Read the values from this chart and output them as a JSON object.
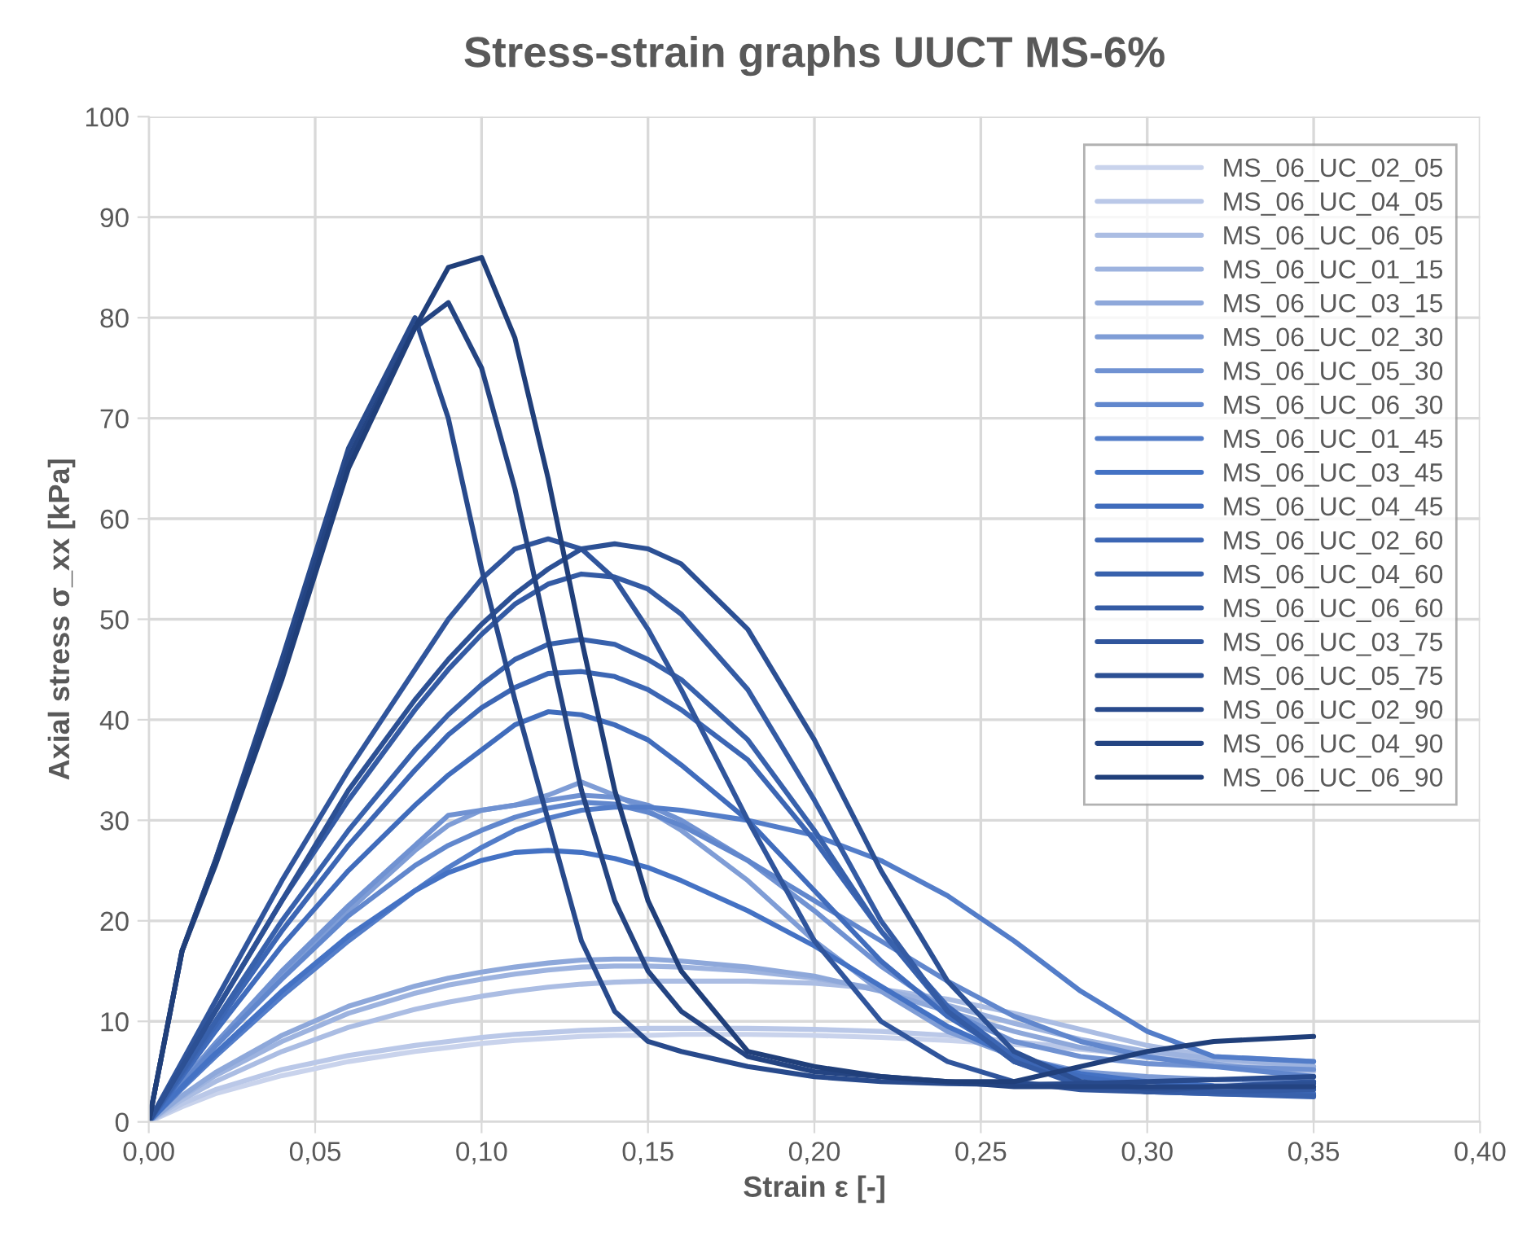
{
  "chart_data": {
    "type": "line",
    "title": "Stress-strain graphs UUCT MS-6%",
    "xlabel": "Strain ε [-]",
    "ylabel": "Axial stress σ_xx [kPa]",
    "x": [
      0,
      0.01,
      0.02,
      0.04,
      0.06,
      0.08,
      0.09,
      0.1,
      0.11,
      0.12,
      0.13,
      0.14,
      0.15,
      0.16,
      0.18,
      0.2,
      0.22,
      0.24,
      0.26,
      0.28,
      0.3,
      0.32,
      0.35
    ],
    "xlim": [
      0,
      0.4
    ],
    "ylim": [
      0,
      100
    ],
    "xticks": [
      {
        "value": 0,
        "label": "0,00"
      },
      {
        "value": 0.05,
        "label": "0,05"
      },
      {
        "value": 0.1,
        "label": "0,10"
      },
      {
        "value": 0.15,
        "label": "0,15"
      },
      {
        "value": 0.2,
        "label": "0,20"
      },
      {
        "value": 0.25,
        "label": "0,25"
      },
      {
        "value": 0.3,
        "label": "0,30"
      },
      {
        "value": 0.35,
        "label": "0,35"
      },
      {
        "value": 0.4,
        "label": "0,40"
      }
    ],
    "yticks": [
      0,
      10,
      20,
      30,
      40,
      50,
      60,
      70,
      80,
      90,
      100
    ],
    "grid": true,
    "legend": "top right",
    "marker": "none",
    "line_style": "solid",
    "series": [
      {
        "name": "MS_06_UC_02_05",
        "color": "#c9d3ec",
        "values": [
          0,
          1.5,
          2.8,
          4.6,
          6.0,
          7.0,
          7.4,
          7.8,
          8.1,
          8.3,
          8.5,
          8.6,
          8.6,
          8.7,
          8.7,
          8.6,
          8.4,
          8.1,
          7.7,
          7.2,
          6.6,
          6.0,
          5.5
        ]
      },
      {
        "name": "MS_06_UC_04_05",
        "color": "#bac8e8",
        "values": [
          0,
          1.8,
          3.2,
          5.2,
          6.6,
          7.6,
          8.0,
          8.4,
          8.7,
          8.9,
          9.1,
          9.2,
          9.3,
          9.3,
          9.3,
          9.2,
          9.0,
          8.6,
          8.0,
          7.3,
          6.6,
          6.0,
          5.0
        ]
      },
      {
        "name": "MS_06_UC_06_05",
        "color": "#abbde3",
        "values": [
          0,
          2.2,
          4,
          7,
          9.4,
          11.2,
          11.9,
          12.5,
          13,
          13.4,
          13.7,
          13.9,
          14,
          14,
          14,
          13.8,
          13.2,
          12.2,
          10.8,
          9.2,
          7.6,
          6.5,
          6.0
        ]
      },
      {
        "name": "MS_06_UC_01_15",
        "color": "#9db3df",
        "values": [
          0,
          2.5,
          4.6,
          8,
          10.8,
          12.8,
          13.6,
          14.2,
          14.7,
          15.1,
          15.4,
          15.5,
          15.5,
          15.4,
          15.0,
          14.3,
          13.2,
          11.6,
          9.8,
          8.2,
          7.0,
          6.3,
          5.5
        ]
      },
      {
        "name": "MS_06_UC_03_15",
        "color": "#8ea8da",
        "values": [
          0,
          2.6,
          4.9,
          8.6,
          11.5,
          13.5,
          14.3,
          14.9,
          15.4,
          15.8,
          16.1,
          16.2,
          16.2,
          16.0,
          15.4,
          14.5,
          13.0,
          11.0,
          9.0,
          7.4,
          6.4,
          5.8,
          4.5
        ]
      },
      {
        "name": "MS_06_UC_02_30",
        "color": "#7f9dd6",
        "values": [
          0,
          4,
          7.8,
          14.5,
          21,
          27,
          29.5,
          31,
          31.5,
          32.5,
          33.8,
          32.5,
          31,
          29,
          24,
          18,
          13,
          9,
          6.5,
          5,
          4.5,
          4.2,
          4.0
        ]
      },
      {
        "name": "MS_06_UC_05_30",
        "color": "#7092d2",
        "values": [
          0,
          4,
          7.8,
          15,
          21.5,
          27.5,
          30.5,
          31,
          31.5,
          32,
          32.5,
          32.3,
          31.5,
          30,
          26,
          21,
          15.5,
          11,
          8,
          6.5,
          5.8,
          5.5,
          5.2
        ]
      },
      {
        "name": "MS_06_UC_06_30",
        "color": "#6187cd",
        "values": [
          0,
          3.8,
          7.5,
          14.2,
          20.5,
          25.5,
          27.5,
          29,
          30.3,
          31.2,
          31.8,
          31.6,
          30.8,
          29.5,
          26,
          22,
          18,
          14,
          10.5,
          8,
          6.5,
          5.5,
          4.5
        ]
      },
      {
        "name": "MS_06_UC_01_45",
        "color": "#537dc9",
        "values": [
          0,
          3.3,
          6.5,
          12.5,
          18,
          23,
          25.3,
          27.3,
          29,
          30.2,
          31,
          31.3,
          31.3,
          31.0,
          30,
          28.5,
          26,
          22.5,
          18,
          13,
          9,
          6.5,
          6.0
        ]
      },
      {
        "name": "MS_06_UC_03_45",
        "color": "#4472c4",
        "values": [
          0,
          3.5,
          6.8,
          13,
          18.5,
          23,
          24.8,
          26,
          26.8,
          27,
          26.8,
          26.2,
          25.3,
          24,
          21,
          17.5,
          13.5,
          9.5,
          6.5,
          4.8,
          4,
          3.6,
          3.3
        ]
      },
      {
        "name": "MS_06_UC_04_45",
        "color": "#406cbc",
        "values": [
          0,
          4.5,
          9,
          17.5,
          25,
          31.5,
          34.5,
          37,
          39.5,
          40.8,
          40.5,
          39.5,
          38,
          35.5,
          30,
          23,
          16,
          10.5,
          6.5,
          4.5,
          3.5,
          3,
          2.8
        ]
      },
      {
        "name": "MS_06_UC_02_60",
        "color": "#3c66b4",
        "values": [
          0,
          4.8,
          9.6,
          19,
          27.5,
          35,
          38.5,
          41.2,
          43.2,
          44.6,
          44.8,
          44.3,
          43,
          41,
          36,
          28,
          19,
          11.5,
          6.5,
          4,
          3,
          2.8,
          2.5
        ]
      },
      {
        "name": "MS_06_UC_04_60",
        "color": "#3861ac",
        "values": [
          0,
          5,
          10,
          20,
          29,
          37,
          40.5,
          43.5,
          46,
          47.5,
          48,
          47.5,
          46,
          44,
          38,
          29,
          19,
          11,
          6,
          3.8,
          3,
          2.8,
          2.6
        ]
      },
      {
        "name": "MS_06_UC_06_60",
        "color": "#345ba4",
        "values": [
          0,
          5.5,
          11,
          22,
          32,
          41,
          45,
          48.5,
          51.5,
          53.5,
          54.5,
          54.2,
          53,
          50.5,
          43,
          32,
          20,
          11,
          6,
          3.6,
          3,
          3,
          3.2
        ]
      },
      {
        "name": "MS_06_UC_03_75",
        "color": "#30559c",
        "values": [
          0,
          6,
          12,
          24,
          35,
          45,
          50,
          54,
          57,
          58,
          57,
          54,
          49,
          43,
          30,
          18,
          10,
          6,
          4,
          3.2,
          3,
          3.5,
          4
        ]
      },
      {
        "name": "MS_06_UC_05_75",
        "color": "#2c5094",
        "values": [
          0,
          5.5,
          11,
          22,
          33,
          42,
          46,
          49.5,
          52.5,
          55,
          57,
          57.5,
          57,
          55.5,
          49,
          38,
          25,
          14,
          7,
          4,
          3.3,
          3.5,
          3.8
        ]
      },
      {
        "name": "MS_06_UC_02_90",
        "color": "#284a8c",
        "values": [
          0,
          17,
          26,
          46,
          67,
          80,
          70,
          55,
          42,
          30,
          18,
          11,
          8,
          7,
          5.5,
          4.5,
          4,
          3.8,
          3.7,
          3.8,
          4,
          4.2,
          4.5
        ]
      },
      {
        "name": "MS_06_UC_04_90",
        "color": "#244482",
        "values": [
          0,
          17,
          26,
          45,
          66,
          79,
          81.5,
          75,
          63,
          48,
          33,
          22,
          15,
          11,
          6.5,
          5,
          4.5,
          4,
          3.5,
          3.5,
          3.5,
          3.5,
          3.5
        ]
      },
      {
        "name": "MS_06_UC_06_90",
        "color": "#203f7a",
        "values": [
          0,
          17,
          25.5,
          44,
          65,
          79,
          85,
          86,
          78,
          64,
          48,
          33,
          22,
          15,
          7,
          5.5,
          4.5,
          4,
          4,
          5.5,
          7,
          8,
          8.5
        ]
      }
    ]
  }
}
